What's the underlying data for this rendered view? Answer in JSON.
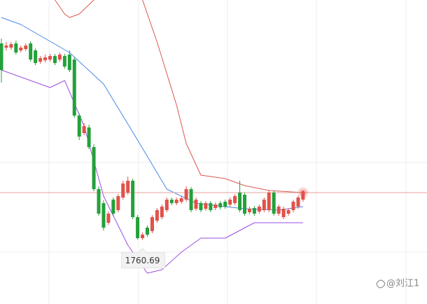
{
  "chart_data": {
    "type": "candlestick",
    "up_color": "#e0524a",
    "down_color": "#23a13a",
    "ylim": [
      1715,
      1932
    ],
    "candles": [
      [
        1901,
        1904.5,
        1873,
        1882
      ],
      [
        1898,
        1902,
        1896,
        1899.5
      ],
      [
        1898,
        1902,
        1896.5,
        1900.5
      ],
      [
        1901,
        1903,
        1893,
        1894.5
      ],
      [
        1896,
        1899.5,
        1894.5,
        1898
      ],
      [
        1897,
        1901,
        1895.5,
        1899.5
      ],
      [
        1901,
        1902.5,
        1888,
        1889.5
      ],
      [
        1896,
        1897.5,
        1885.5,
        1887
      ],
      [
        1888,
        1892,
        1886.5,
        1890.5
      ],
      [
        1889,
        1893,
        1887.5,
        1891
      ],
      [
        1889.5,
        1893.5,
        1888,
        1892
      ],
      [
        1892,
        1893.5,
        1885.5,
        1887
      ],
      [
        1889.5,
        1894.5,
        1888,
        1893
      ],
      [
        1892,
        1893.5,
        1883,
        1884.5
      ],
      [
        1893,
        1896,
        1880.5,
        1882
      ],
      [
        1889.5,
        1891,
        1848,
        1849.5
      ],
      [
        1849.5,
        1851,
        1832,
        1834.5
      ],
      [
        1837,
        1844,
        1835.5,
        1842
      ],
      [
        1841,
        1843,
        1825.5,
        1827
      ],
      [
        1827,
        1829,
        1795.5,
        1797
      ],
      [
        1797,
        1799,
        1778,
        1779.5
      ],
      [
        1787,
        1789,
        1767.5,
        1769.5
      ],
      [
        1773,
        1781,
        1771.5,
        1779.5
      ],
      [
        1789.5,
        1791,
        1778,
        1779.5
      ],
      [
        1782,
        1793.5,
        1780.5,
        1792
      ],
      [
        1791,
        1803,
        1789.5,
        1801
      ],
      [
        1794.5,
        1806,
        1793,
        1803
      ],
      [
        1803,
        1804.5,
        1775.5,
        1777
      ],
      [
        1777,
        1778.5,
        1761,
        1762
      ],
      [
        1762,
        1766,
        1760.69,
        1764.5
      ],
      [
        1769.5,
        1771,
        1763,
        1764.5
      ],
      [
        1767,
        1778.5,
        1765.5,
        1777
      ],
      [
        1774.5,
        1783.5,
        1773,
        1782
      ],
      [
        1777,
        1786,
        1775.5,
        1784.5
      ],
      [
        1782,
        1791,
        1780.5,
        1789.5
      ],
      [
        1789.5,
        1791,
        1785.5,
        1787
      ],
      [
        1787,
        1791,
        1785.5,
        1789.5
      ],
      [
        1788,
        1792,
        1786.5,
        1790.5
      ],
      [
        1789.5,
        1799,
        1788,
        1797
      ],
      [
        1797,
        1798.5,
        1780.5,
        1782
      ],
      [
        1783,
        1791,
        1781.5,
        1789.5
      ],
      [
        1787,
        1788.5,
        1780.5,
        1782
      ],
      [
        1783,
        1788.5,
        1781.5,
        1787
      ],
      [
        1787,
        1788.5,
        1780.5,
        1782
      ],
      [
        1783.5,
        1787.5,
        1782,
        1786
      ],
      [
        1787,
        1788.5,
        1782.5,
        1784
      ],
      [
        1788,
        1789.5,
        1783,
        1784.5
      ],
      [
        1786,
        1791,
        1784.5,
        1789.5
      ],
      [
        1787,
        1793.5,
        1785.5,
        1792
      ],
      [
        1794.5,
        1803,
        1780.5,
        1782
      ],
      [
        1793,
        1794.5,
        1778,
        1779.5
      ],
      [
        1780.5,
        1784.5,
        1779,
        1783
      ],
      [
        1783.5,
        1785,
        1778,
        1779.5
      ],
      [
        1781,
        1786,
        1779.5,
        1784.5
      ],
      [
        1782,
        1791,
        1780.5,
        1789.5
      ],
      [
        1782,
        1796,
        1780.5,
        1794.5
      ],
      [
        1794.5,
        1796,
        1778,
        1779.5
      ],
      [
        1779.5,
        1786,
        1778,
        1784.5
      ],
      [
        1777,
        1784.5,
        1775.5,
        1783
      ],
      [
        1779.5,
        1783.5,
        1778,
        1782
      ],
      [
        1782,
        1789.5,
        1780.5,
        1788
      ],
      [
        1784.5,
        1792.5,
        1783,
        1791
      ],
      [
        1789.5,
        1796,
        1788,
        1794.5
      ]
    ],
    "bands": [
      {
        "color": "#d9584d",
        "x": [
          11,
          13,
          14,
          16,
          19,
          24,
          29,
          32,
          36,
          38,
          41,
          46,
          50,
          55,
          62
        ],
        "values": [
          1932,
          1922,
          1919.5,
          1922,
          1932,
          null,
          1932,
          1902,
          1857,
          1829.5,
          1807,
          1804.5,
          1799.5,
          1796,
          1794.5
        ]
      },
      {
        "color": "#4a86e8",
        "x": [
          0,
          4,
          14,
          21,
          28,
          34,
          40,
          46,
          50,
          57,
          62
        ],
        "values": [
          1919.5,
          1914.5,
          1894.5,
          1872,
          1832,
          1797,
          1787,
          1784.5,
          1783,
          1782,
          1784.5
        ]
      },
      {
        "color": "#9b4fe0",
        "x": [
          0,
          6,
          10,
          13,
          17,
          21,
          26,
          30,
          33,
          37,
          41,
          46,
          52,
          57,
          62
        ],
        "values": [
          1882,
          1874.5,
          1869.5,
          1874.5,
          1842,
          1792,
          1757,
          1737,
          1739.5,
          1752,
          1762,
          1762,
          1773,
          1773,
          1773
        ]
      }
    ],
    "watermark": "@刘江1"
  }
}
